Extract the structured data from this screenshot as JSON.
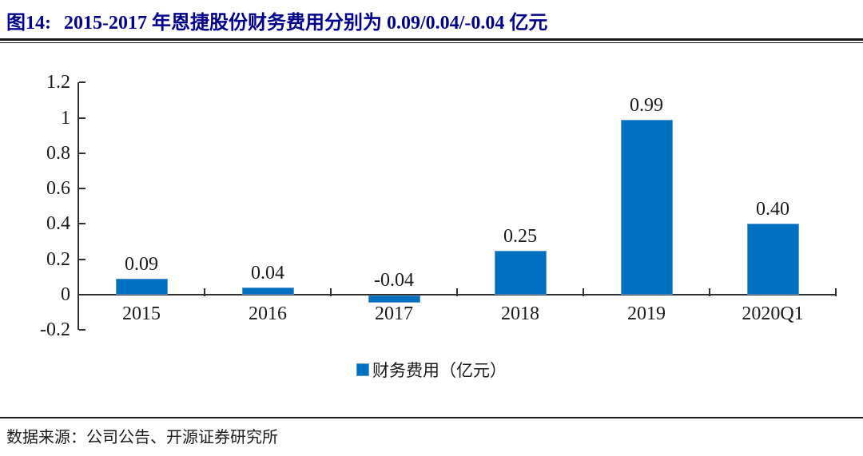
{
  "figure": {
    "label": "图14:",
    "title": "2015-2017 年恩捷股份财务费用分别为 0.09/0.04/-0.04 亿元"
  },
  "chart_data": {
    "type": "bar",
    "title": "2015-2017 年恩捷股份财务费用分别为 0.09/0.04/-0.04 亿元",
    "categories": [
      "2015",
      "2016",
      "2017",
      "2018",
      "2019",
      "2020Q1"
    ],
    "values": [
      0.09,
      0.04,
      -0.04,
      0.25,
      0.99,
      0.4
    ],
    "value_labels": [
      "0.09",
      "0.04",
      "-0.04",
      "0.25",
      "0.99",
      "0.40"
    ],
    "series_name": "财务费用（亿元）",
    "legend": [
      "财务费用（亿元）"
    ],
    "legend_position": "bottom",
    "xlabel": "",
    "ylabel": "",
    "ylim": [
      -0.2,
      1.2
    ],
    "ytick_step": 0.2,
    "ytick_labels": [
      "-0.2",
      "0",
      "0.2",
      "0.4",
      "0.6",
      "0.8",
      "1",
      "1.2"
    ],
    "grid": false,
    "bar_color": "#0070C0",
    "bar_border_color": "#5B9BD5",
    "axis_color": "#303030"
  },
  "colors": {
    "title": "#00008B",
    "rule": "#1a1a1a",
    "text": "#1a1a1a"
  },
  "source": {
    "text": "数据来源：公司公告、开源证券研究所"
  }
}
